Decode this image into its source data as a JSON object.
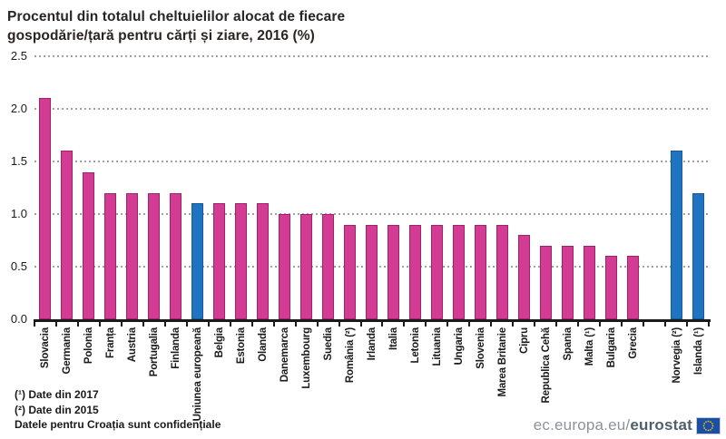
{
  "title": {
    "line1": "Procentul din totalul cheltuielilor alocat de fiecare",
    "line2": "gospodărie/țară pentru cărți și ziare, 2016 (%)"
  },
  "footnotes": {
    "note1": "(¹) Date din 2017",
    "note2": "(²) Date din 2015",
    "note3": "Datele pentru Croația sunt confidențiale"
  },
  "branding": {
    "url_prefix": "ec.europa.eu/",
    "url_bold": "eurostat",
    "flag_icon": "eu-flag-icon"
  },
  "colors": {
    "bar_country": "#d33c92",
    "bar_country_border": "#9e2368",
    "bar_highlight": "#1e74c2",
    "bar_highlight_border": "#155a92",
    "gridline": "#a0a0a0",
    "axis": "#1a1a1a",
    "title_text": "#2a2422",
    "brand_gray": "#8b939b",
    "brand_dark": "#4e5f6d",
    "flag_blue": "#1a4fa5",
    "flag_stars": "#ffcc00"
  },
  "chart_data": {
    "type": "bar",
    "title": "Procentul din totalul cheltuielilor alocat de fiecare gospodărie/țară pentru cărți și ziare, 2016 (%)",
    "xlabel": "",
    "ylabel": "",
    "ylim": [
      0,
      2.5
    ],
    "yticks": [
      0.0,
      0.5,
      1.0,
      1.5,
      2.0,
      2.5
    ],
    "ytick_format": "one_decimal",
    "grid": "horizontal-dotted",
    "legend": "none",
    "highlight_meaning": "blue bars = Uniunea europeană / țări EFTA; pink bars = țări individuale",
    "bars": [
      {
        "label": "Slovacia",
        "value": 2.1,
        "group": "country"
      },
      {
        "label": "Germania",
        "value": 1.6,
        "group": "country"
      },
      {
        "label": "Polonia",
        "value": 1.4,
        "group": "country"
      },
      {
        "label": "Franța",
        "value": 1.2,
        "group": "country"
      },
      {
        "label": "Austria",
        "value": 1.2,
        "group": "country"
      },
      {
        "label": "Portugalia",
        "value": 1.2,
        "group": "country"
      },
      {
        "label": "Finlanda",
        "value": 1.2,
        "group": "country"
      },
      {
        "label": "Uniunea europeană",
        "value": 1.1,
        "group": "highlight"
      },
      {
        "label": "Belgia",
        "value": 1.1,
        "group": "country"
      },
      {
        "label": "Estonia",
        "value": 1.1,
        "group": "country"
      },
      {
        "label": "Olanda",
        "value": 1.1,
        "group": "country"
      },
      {
        "label": "Danemarca",
        "value": 1.0,
        "group": "country"
      },
      {
        "label": "Luxembourg",
        "value": 1.0,
        "group": "country"
      },
      {
        "label": "Suedia",
        "value": 1.0,
        "group": "country"
      },
      {
        "label": "România (²)",
        "value": 0.9,
        "group": "country"
      },
      {
        "label": "Irlanda",
        "value": 0.9,
        "group": "country"
      },
      {
        "label": "Italia",
        "value": 0.9,
        "group": "country"
      },
      {
        "label": "Letonia",
        "value": 0.9,
        "group": "country"
      },
      {
        "label": "Lituania",
        "value": 0.9,
        "group": "country"
      },
      {
        "label": "Ungaria",
        "value": 0.9,
        "group": "country"
      },
      {
        "label": "Slovenia",
        "value": 0.9,
        "group": "country"
      },
      {
        "label": "Marea Britanie",
        "value": 0.9,
        "group": "country"
      },
      {
        "label": "Cipru",
        "value": 0.8,
        "group": "country"
      },
      {
        "label": "Republica Cehă",
        "value": 0.7,
        "group": "country"
      },
      {
        "label": "Spania",
        "value": 0.7,
        "group": "country"
      },
      {
        "label": "Malta (¹)",
        "value": 0.7,
        "group": "country"
      },
      {
        "label": "Bulgaria",
        "value": 0.6,
        "group": "country"
      },
      {
        "label": "Grecia",
        "value": 0.6,
        "group": "country"
      },
      {
        "label": "",
        "value": null,
        "group": "spacer"
      },
      {
        "label": "Norvegia (²)",
        "value": 1.6,
        "group": "highlight"
      },
      {
        "label": "Islanda (¹)",
        "value": 1.2,
        "group": "highlight"
      }
    ]
  }
}
